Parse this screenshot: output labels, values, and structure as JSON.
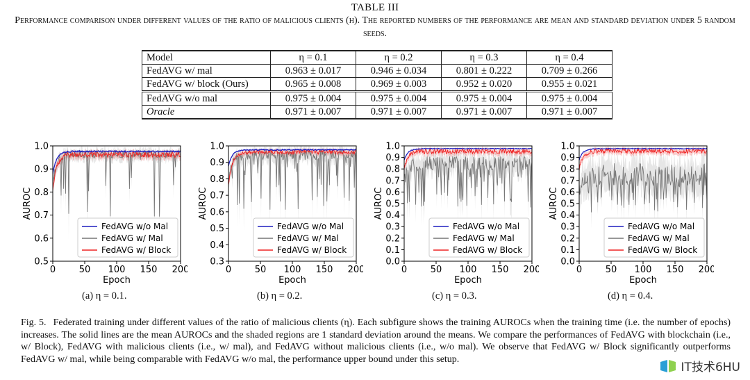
{
  "table": {
    "label": "TABLE III",
    "caption": "Performance comparison under different values of the ratio of malicious clients (η). The reported numbers of the performance are mean and standard deviation under 5 random seeds.",
    "headers": [
      "Model",
      "η = 0.1",
      "η = 0.2",
      "η = 0.3",
      "η = 0.4"
    ],
    "rows": [
      {
        "model": "FedAVG w/ mal",
        "values": [
          "0.963 ± 0.017",
          "0.946 ± 0.034",
          "0.801 ± 0.222",
          "0.709 ± 0.266"
        ]
      },
      {
        "model": "FedAVG w/ block (Ours)",
        "values": [
          "0.965 ± 0.008",
          "0.969 ± 0.003",
          "0.952 ± 0.020",
          "0.955 ± 0.021"
        ]
      },
      {
        "model": "FedAVG w/o mal",
        "values": [
          "0.975 ± 0.004",
          "0.975 ± 0.004",
          "0.975 ± 0.004",
          "0.975 ± 0.004"
        ]
      },
      {
        "model": "Oracle",
        "values": [
          "0.971 ± 0.007",
          "0.971 ± 0.007",
          "0.971 ± 0.007",
          "0.971 ± 0.007"
        ]
      }
    ]
  },
  "chart_data": [
    {
      "type": "line",
      "sub_caption": "(a) η = 0.1.",
      "xlabel": "Epoch",
      "ylabel": "AUROC",
      "xlim": [
        0,
        200
      ],
      "ylim": [
        0.5,
        1.0
      ],
      "xticks": [
        0,
        50,
        100,
        150,
        200
      ],
      "yticks": [
        0.5,
        0.6,
        0.7,
        0.8,
        0.9,
        1.0
      ],
      "yticklabels": [
        "0.5",
        "0.6",
        "0.7",
        "0.8",
        "0.9",
        "1.0"
      ],
      "legend": "lower-right",
      "series": [
        {
          "name": "FedAVG w/o Mal",
          "color": "#1f1fbf",
          "start": 0.88,
          "plateau": 0.976,
          "noise": 0.003
        },
        {
          "name": "FedAVG w/ Mal",
          "color": "#777777",
          "start": 0.83,
          "plateau": 0.963,
          "noise": 0.017,
          "drop_prob": 0.12,
          "drop_min": 0.55
        },
        {
          "name": "FedAVG w/ Block",
          "color": "#ee2222",
          "start": 0.81,
          "plateau": 0.962,
          "noise": 0.012
        }
      ]
    },
    {
      "type": "line",
      "sub_caption": "(b) η = 0.2.",
      "xlabel": "Epoch",
      "ylabel": "AUROC",
      "xlim": [
        0,
        200
      ],
      "ylim": [
        0.3,
        1.0
      ],
      "xticks": [
        0,
        50,
        100,
        150,
        200
      ],
      "yticks": [
        0.3,
        0.4,
        0.5,
        0.6,
        0.7,
        0.8,
        0.9,
        1.0
      ],
      "yticklabels": [
        "0.3",
        "0.4",
        "0.5",
        "0.6",
        "0.7",
        "0.8",
        "0.9",
        "1.0"
      ],
      "legend": "lower-right",
      "series": [
        {
          "name": "FedAVG w/o Mal",
          "color": "#1f1fbf",
          "start": 0.88,
          "plateau": 0.976,
          "noise": 0.003
        },
        {
          "name": "FedAVG w/ Mal",
          "color": "#777777",
          "start": 0.78,
          "plateau": 0.946,
          "noise": 0.03,
          "drop_prob": 0.22,
          "drop_min": 0.45
        },
        {
          "name": "FedAVG w/ Block",
          "color": "#ee2222",
          "start": 0.76,
          "plateau": 0.962,
          "noise": 0.012
        }
      ]
    },
    {
      "type": "line",
      "sub_caption": "(c) η = 0.3.",
      "xlabel": "Epoch",
      "ylabel": "AUROC",
      "xlim": [
        0,
        200
      ],
      "ylim": [
        0.0,
        1.0
      ],
      "xticks": [
        0,
        50,
        100,
        150,
        200
      ],
      "yticks": [
        0.0,
        0.1,
        0.2,
        0.3,
        0.4,
        0.5,
        0.6,
        0.7,
        0.8,
        0.9,
        1.0
      ],
      "yticklabels": [
        "0.0",
        "0.1",
        "0.2",
        "0.3",
        "0.4",
        "0.5",
        "0.6",
        "0.7",
        "0.8",
        "0.9",
        "1.0"
      ],
      "legend": "lower-right",
      "series": [
        {
          "name": "FedAVG w/o Mal",
          "color": "#1f1fbf",
          "start": 0.88,
          "plateau": 0.976,
          "noise": 0.003
        },
        {
          "name": "FedAVG w/ Mal",
          "color": "#777777",
          "start": 0.7,
          "plateau": 0.85,
          "noise": 0.06,
          "drop_prob": 0.35,
          "drop_min": 0.3
        },
        {
          "name": "FedAVG w/ Block",
          "color": "#ee2222",
          "start": 0.8,
          "plateau": 0.952,
          "noise": 0.02
        }
      ]
    },
    {
      "type": "line",
      "sub_caption": "(d) η = 0.4.",
      "xlabel": "Epoch",
      "ylabel": "AUROC",
      "xlim": [
        0,
        200
      ],
      "ylim": [
        0.0,
        1.0
      ],
      "xticks": [
        0,
        50,
        100,
        150,
        200
      ],
      "yticks": [
        0.0,
        0.1,
        0.2,
        0.3,
        0.4,
        0.5,
        0.6,
        0.7,
        0.8,
        0.9,
        1.0
      ],
      "yticklabels": [
        "0.0",
        "0.1",
        "0.2",
        "0.3",
        "0.4",
        "0.5",
        "0.6",
        "0.7",
        "0.8",
        "0.9",
        "1.0"
      ],
      "legend": "lower-right",
      "series": [
        {
          "name": "FedAVG w/o Mal",
          "color": "#1f1fbf",
          "start": 0.88,
          "plateau": 0.976,
          "noise": 0.003
        },
        {
          "name": "FedAVG w/ Mal",
          "color": "#777777",
          "start": 0.6,
          "plateau": 0.75,
          "noise": 0.1,
          "drop_prob": 0.4,
          "drop_min": 0.28
        },
        {
          "name": "FedAVG w/ Block",
          "color": "#ee2222",
          "start": 0.8,
          "plateau": 0.955,
          "noise": 0.02
        }
      ]
    }
  ],
  "figure": {
    "label": "Fig. 5.",
    "caption": "Federated training under different values of the ratio of malicious clients (η). Each subfigure shows the training AUROCs when the training time (i.e. the number of epochs) increases. The solid lines are the mean AUROCs and the shaded regions are 1 standard deviation around the means. We compare the performances of FedAVG with blockchain (i.e., w/ Block), FedAVG with malicious clients (i.e., w/ mal), and FedAVG without malicious clients (i.e., w/o mal). We observe that FedAVG w/ Block significantly outperforms FedAVG w/ mal, while being comparable with FedAVG w/o mal, the performance upper bound under this setup."
  },
  "watermark": {
    "text": "IT技术6HU",
    "logo_color": "#2a9fd6"
  }
}
